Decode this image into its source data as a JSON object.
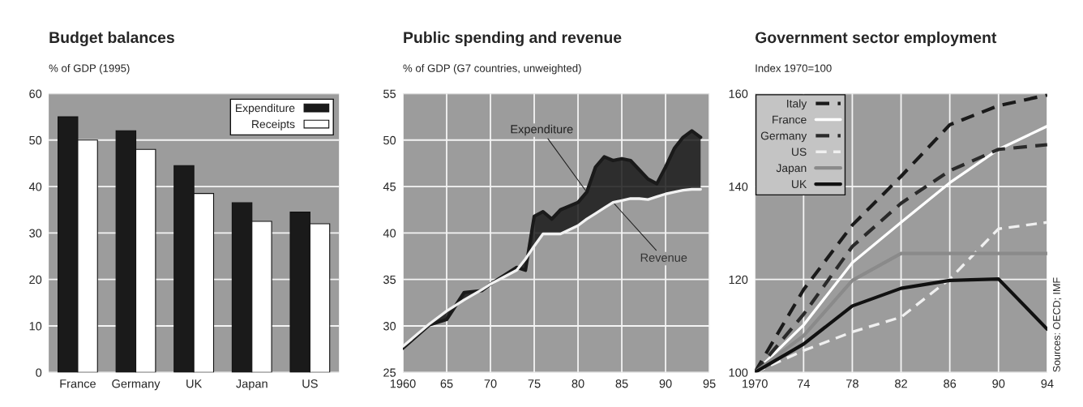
{
  "chart_data": [
    {
      "type": "bar",
      "title": "Budget balances",
      "subtitle": "% of GDP (1995)",
      "categories": [
        "France",
        "Germany",
        "UK",
        "Japan",
        "US"
      ],
      "series": [
        {
          "name": "Expenditure",
          "color": "#1a1a1a",
          "values": [
            55,
            52,
            44.5,
            36.5,
            34.5
          ]
        },
        {
          "name": "Receipts",
          "color": "#ffffff",
          "values": [
            50,
            48,
            38.5,
            32.5,
            32
          ]
        }
      ],
      "ylim": [
        0,
        60
      ],
      "yticks": [
        0,
        10,
        20,
        30,
        40,
        50,
        60
      ],
      "grid": "y",
      "legend": "top right"
    },
    {
      "type": "line",
      "title": "Public spending and revenue",
      "subtitle": "% of GDP (G7 countries, unweighted)",
      "x": [
        1960,
        1963,
        1965,
        1967,
        1969,
        1970,
        1973,
        1974,
        1975,
        1976,
        1977,
        1978,
        1980,
        1981,
        1982,
        1983,
        1984,
        1985,
        1986,
        1987,
        1988,
        1989,
        1990,
        1991,
        1992,
        1993,
        1994
      ],
      "series": [
        {
          "type": "area",
          "color": "#1a1a1a",
          "values": [
            27.6,
            30.1,
            30.7,
            33.6,
            33.8,
            34.5,
            36.3,
            36.0,
            41.8,
            42.3,
            41.5,
            42.5,
            43.3,
            44.4,
            47.1,
            48.2,
            47.8,
            48.0,
            47.8,
            46.8,
            45.8,
            45.3,
            47.1,
            49.1,
            50.3,
            51.0,
            50.3
          ]
        },
        {
          "color": "#f2f2f2",
          "values": [
            27.8,
            30.2,
            31.6,
            32.8,
            33.9,
            34.5,
            36.0,
            37.2,
            38.6,
            39.9,
            39.9,
            39.9,
            40.8,
            41.5,
            42.1,
            42.7,
            43.3,
            43.5,
            43.7,
            43.7,
            43.6,
            43.9,
            44.2,
            44.4,
            44.6,
            44.7,
            44.7
          ]
        }
      ],
      "annotations": [
        {
          "text": "Expenditure",
          "x": 1981,
          "y": 44.4
        },
        {
          "text": "Revenue",
          "x": 1984,
          "y": 43.3
        }
      ],
      "xlim": [
        1960,
        1995
      ],
      "xticks": [
        1960,
        {
          "value": 1965,
          "label": "65"
        },
        {
          "value": 1970,
          "label": "70"
        },
        {
          "value": 1975,
          "label": "75"
        },
        {
          "value": 1980,
          "label": "80"
        },
        {
          "value": 1985,
          "label": "85"
        },
        {
          "value": 1990,
          "label": "90"
        },
        {
          "value": 1995,
          "label": "95"
        }
      ],
      "ylim": [
        25,
        55
      ],
      "yticks": [
        25,
        30,
        35,
        40,
        45,
        50,
        55
      ],
      "grid": true
    },
    {
      "type": "line",
      "title": "Government sector employment",
      "subtitle": "Index 1970=100",
      "x": [
        1970,
        1974,
        1978,
        1982,
        1986,
        1990,
        1994
      ],
      "series": [
        {
          "name": "Italy",
          "color": "#1a1a1a",
          "line_style": "dashed",
          "values": [
            100,
            117.8,
            131.7,
            142.2,
            153.3,
            157.4,
            159.7
          ]
        },
        {
          "name": "France",
          "color": "#ffffff",
          "line_style": "solid",
          "values": [
            100,
            110.2,
            123.6,
            132.3,
            140.8,
            148,
            153
          ]
        },
        {
          "name": "Germany",
          "color": "#2a2a2a",
          "line_style": "dashed",
          "values": [
            100,
            112.5,
            127.1,
            136.4,
            143.4,
            148,
            149
          ]
        },
        {
          "name": "US",
          "color": "#f0f0f0",
          "line_style": "dashed",
          "values": [
            100,
            104.7,
            108.7,
            111.9,
            120.1,
            130.9,
            132.3
          ]
        },
        {
          "name": "Japan",
          "color": "#8a8a8a",
          "line_style": "solid",
          "values": [
            100,
            107.9,
            119.8,
            125.6,
            125.6,
            125.6,
            125.6
          ]
        },
        {
          "name": "UK",
          "color": "#111111",
          "line_style": "solid",
          "values": [
            100,
            106.1,
            114.3,
            118.1,
            119.8,
            120.1,
            109.3
          ]
        }
      ],
      "annotations": [
        "Sources: OECD; IMF"
      ],
      "xlim": [
        1970,
        1994
      ],
      "xticks": [
        1970,
        {
          "value": 1974,
          "label": "74"
        },
        {
          "value": 1978,
          "label": "78"
        },
        {
          "value": 1982,
          "label": "82"
        },
        {
          "value": 1986,
          "label": "86"
        },
        {
          "value": 1990,
          "label": "90"
        },
        {
          "value": 1994,
          "label": "94"
        }
      ],
      "ylim": [
        100,
        160
      ],
      "yticks": [
        100,
        120,
        140,
        160
      ],
      "grid": true,
      "legend": "top left"
    }
  ]
}
